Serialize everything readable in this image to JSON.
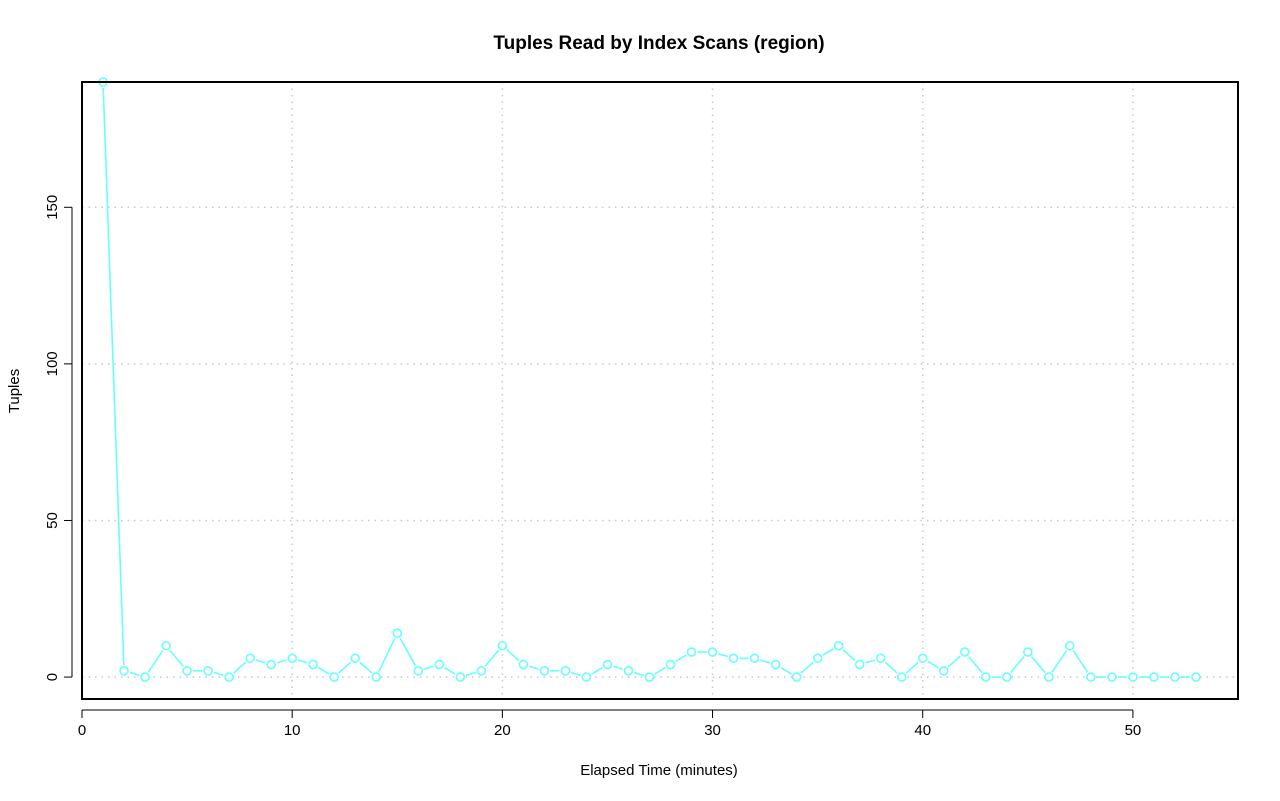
{
  "chart_data": {
    "type": "line",
    "title": "Tuples Read by Index Scans (region)",
    "xlabel": "Elapsed Time (minutes)",
    "ylabel": "Tuples",
    "xlim": [
      0,
      55
    ],
    "ylim": [
      -7,
      190
    ],
    "xticks": [
      0,
      10,
      20,
      30,
      40,
      50
    ],
    "yticks": [
      0,
      50,
      100,
      150
    ],
    "grid": true,
    "color": "#66ffff",
    "series": [
      {
        "x": [
          1,
          2,
          3,
          4,
          5,
          6,
          7,
          8,
          9,
          10,
          11,
          12,
          13,
          14,
          15,
          16,
          17,
          18,
          19,
          20,
          21,
          22,
          23,
          24,
          25,
          26,
          27,
          28,
          29,
          30,
          31,
          32,
          33,
          34,
          35,
          36,
          37,
          38,
          39,
          40,
          41,
          42,
          43,
          44,
          45,
          46,
          47,
          48,
          49,
          50,
          51,
          52,
          53
        ],
        "values": [
          190,
          2,
          0,
          10,
          2,
          2,
          0,
          6,
          4,
          6,
          4,
          0,
          6,
          0,
          14,
          2,
          4,
          0,
          2,
          10,
          4,
          2,
          2,
          0,
          4,
          2,
          0,
          4,
          8,
          8,
          6,
          6,
          4,
          0,
          6,
          10,
          4,
          6,
          0,
          6,
          2,
          8,
          0,
          0,
          8,
          0,
          10,
          0,
          0,
          0,
          0,
          0,
          0
        ]
      }
    ]
  }
}
